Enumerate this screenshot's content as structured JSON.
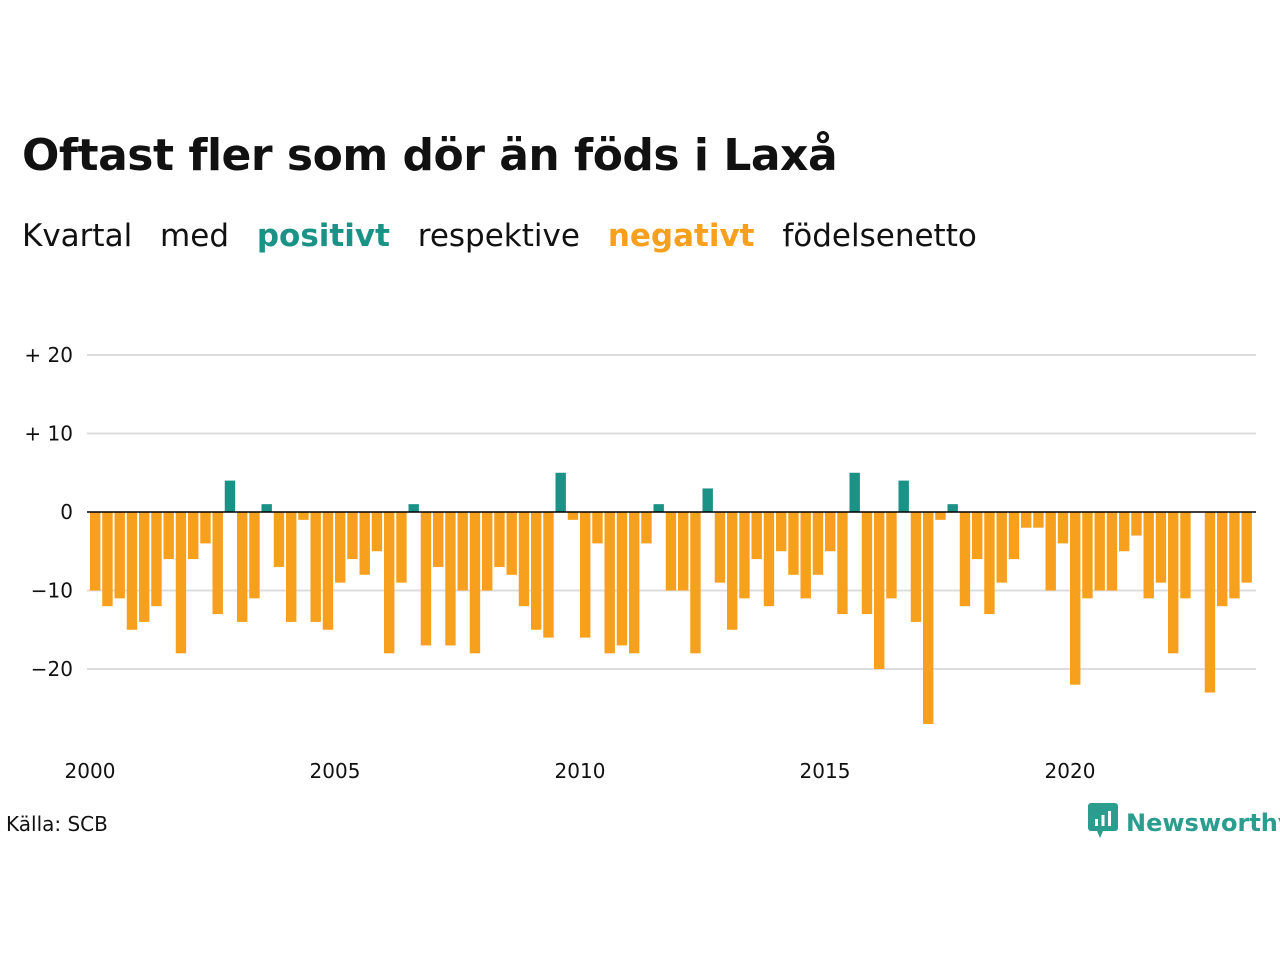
{
  "title": "Oftast fler som dör än föds i Laxå",
  "subtitle": {
    "w1": "Kvartal",
    "w2": "med",
    "positive": "positivt",
    "w3": "respektive",
    "negative": "negativt",
    "w4": "födelsenetto"
  },
  "source": "Källa: SCB",
  "brand": {
    "name": "Newsworthy",
    "icon": "newsworthy-logo-icon",
    "color": "#2a9d8f"
  },
  "colors": {
    "positive": "#1a9286",
    "negative": "#f7a01e",
    "grid": "#dddddd",
    "zero": "#000000"
  },
  "chart_data": {
    "type": "bar",
    "x_start_year": 2000,
    "x_step": "quarter",
    "x_ticks": [
      {
        "value": 2000,
        "label": "2000"
      },
      {
        "value": 2005,
        "label": "2005"
      },
      {
        "value": 2010,
        "label": "2010"
      },
      {
        "value": 2015,
        "label": "2015"
      },
      {
        "value": 2020,
        "label": "2020"
      }
    ],
    "y_ticks": [
      {
        "value": 20,
        "label": "+ 20"
      },
      {
        "value": 10,
        "label": "+ 10"
      },
      {
        "value": 0,
        "label": "0"
      },
      {
        "value": -10,
        "label": "−10"
      },
      {
        "value": -20,
        "label": "−20"
      }
    ],
    "ylim": [
      -28,
      20
    ],
    "grid": true,
    "values": [
      -10,
      -12,
      -11,
      -15,
      -14,
      -12,
      -6,
      -18,
      -6,
      -4,
      -13,
      4,
      -14,
      -11,
      1,
      -7,
      -14,
      -1,
      -14,
      -15,
      -9,
      -6,
      -8,
      -5,
      -18,
      -9,
      1,
      -17,
      -7,
      -17,
      -10,
      -18,
      -10,
      -7,
      -8,
      -12,
      -15,
      -16,
      5,
      -1,
      -16,
      -4,
      -18,
      -17,
      -18,
      -4,
      1,
      -10,
      -10,
      -18,
      3,
      -9,
      -15,
      -11,
      -6,
      -12,
      -5,
      -8,
      -11,
      -8,
      -5,
      -13,
      5,
      -13,
      -20,
      -11,
      4,
      -14,
      -27,
      -1,
      1,
      -12,
      -6,
      -13,
      -9,
      -6,
      -2,
      -2,
      -10,
      -4,
      -22,
      -11,
      -10,
      -10,
      -5,
      -3,
      -11,
      -9,
      -18,
      -11,
      0,
      -23,
      -12,
      -11,
      -9
    ]
  }
}
